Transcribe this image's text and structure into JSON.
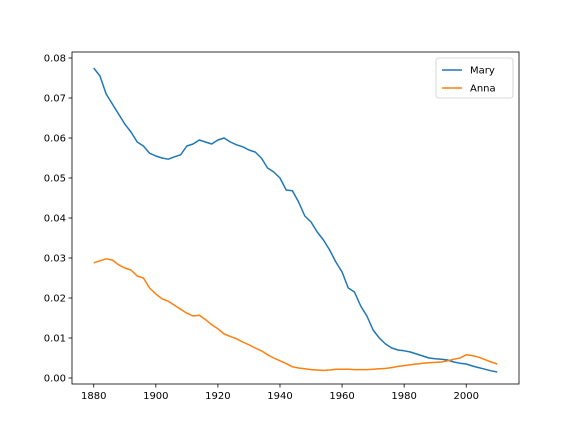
{
  "chart_data": {
    "type": "line",
    "title": "",
    "xlabel": "",
    "ylabel": "",
    "xlim": [
      1873,
      2017
    ],
    "ylim": [
      -0.0015,
      0.0815
    ],
    "x_ticks": [
      1880,
      1900,
      1920,
      1940,
      1960,
      1980,
      2000
    ],
    "y_ticks": [
      0.0,
      0.01,
      0.02,
      0.03,
      0.04,
      0.05,
      0.06,
      0.07,
      0.08
    ],
    "y_tick_labels": [
      "0.00",
      "0.01",
      "0.02",
      "0.03",
      "0.04",
      "0.05",
      "0.06",
      "0.07",
      "0.08"
    ],
    "grid": false,
    "legend_position": "top-right",
    "series": [
      {
        "name": "Mary",
        "color": "#1f77b4",
        "x": [
          1880,
          1882,
          1884,
          1886,
          1888,
          1890,
          1892,
          1894,
          1896,
          1898,
          1900,
          1902,
          1904,
          1906,
          1908,
          1910,
          1912,
          1914,
          1916,
          1918,
          1920,
          1922,
          1924,
          1926,
          1928,
          1930,
          1932,
          1934,
          1936,
          1938,
          1940,
          1942,
          1944,
          1946,
          1948,
          1950,
          1952,
          1954,
          1956,
          1958,
          1960,
          1962,
          1964,
          1966,
          1968,
          1970,
          1972,
          1974,
          1976,
          1978,
          1980,
          1982,
          1984,
          1986,
          1988,
          1990,
          1992,
          1994,
          1996,
          1998,
          2000,
          2002,
          2004,
          2006,
          2008,
          2010
        ],
        "y": [
          0.0775,
          0.0755,
          0.071,
          0.0685,
          0.066,
          0.0635,
          0.0615,
          0.059,
          0.058,
          0.0562,
          0.0555,
          0.055,
          0.0547,
          0.0553,
          0.0558,
          0.058,
          0.0585,
          0.0595,
          0.059,
          0.0585,
          0.0595,
          0.06,
          0.059,
          0.0583,
          0.0578,
          0.057,
          0.0565,
          0.055,
          0.0525,
          0.0515,
          0.05,
          0.047,
          0.0468,
          0.044,
          0.0405,
          0.039,
          0.0365,
          0.0345,
          0.032,
          0.029,
          0.0265,
          0.0225,
          0.0215,
          0.018,
          0.0155,
          0.012,
          0.01,
          0.0085,
          0.0075,
          0.007,
          0.0068,
          0.0065,
          0.006,
          0.0055,
          0.005,
          0.0048,
          0.0047,
          0.0045,
          0.004,
          0.0037,
          0.0035,
          0.003,
          0.0026,
          0.0022,
          0.0018,
          0.0015
        ]
      },
      {
        "name": "Anna",
        "color": "#ff7f0e",
        "x": [
          1880,
          1882,
          1884,
          1886,
          1888,
          1890,
          1892,
          1894,
          1896,
          1898,
          1900,
          1902,
          1904,
          1906,
          1908,
          1910,
          1912,
          1914,
          1916,
          1918,
          1920,
          1922,
          1924,
          1926,
          1928,
          1930,
          1932,
          1934,
          1936,
          1938,
          1940,
          1942,
          1944,
          1946,
          1948,
          1950,
          1952,
          1954,
          1956,
          1958,
          1960,
          1962,
          1964,
          1966,
          1968,
          1970,
          1972,
          1974,
          1976,
          1978,
          1980,
          1982,
          1984,
          1986,
          1988,
          1990,
          1992,
          1994,
          1996,
          1998,
          2000,
          2002,
          2004,
          2006,
          2008,
          2010
        ],
        "y": [
          0.0288,
          0.0293,
          0.0298,
          0.0295,
          0.0283,
          0.0275,
          0.027,
          0.0255,
          0.025,
          0.0225,
          0.021,
          0.0198,
          0.0192,
          0.0182,
          0.0172,
          0.0162,
          0.0155,
          0.0157,
          0.0146,
          0.0133,
          0.0123,
          0.011,
          0.0104,
          0.0098,
          0.009,
          0.0083,
          0.0075,
          0.0068,
          0.0058,
          0.005,
          0.0043,
          0.0036,
          0.0028,
          0.0025,
          0.0023,
          0.0021,
          0.002,
          0.0019,
          0.002,
          0.0022,
          0.0022,
          0.0022,
          0.0021,
          0.0021,
          0.0021,
          0.0022,
          0.0023,
          0.0024,
          0.0026,
          0.0029,
          0.0031,
          0.0033,
          0.0035,
          0.0037,
          0.0038,
          0.0039,
          0.004,
          0.0043,
          0.0047,
          0.005,
          0.0058,
          0.0056,
          0.0052,
          0.0046,
          0.004,
          0.0035
        ]
      }
    ]
  }
}
